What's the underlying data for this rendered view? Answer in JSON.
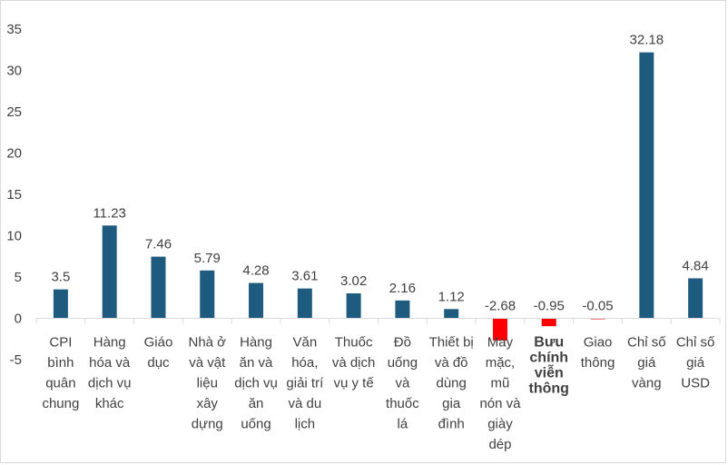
{
  "chart_data": {
    "type": "bar",
    "title": "",
    "xlabel": "",
    "ylabel": "",
    "ylim": [
      -5,
      35
    ],
    "yticks": [
      -5,
      0,
      5,
      10,
      15,
      20,
      25,
      30,
      35
    ],
    "grid": false,
    "legend": "none",
    "colors": {
      "positive": "#1f5b7e",
      "negative": "#ff0000",
      "axis": "#d9d9d9",
      "text": "#404040"
    },
    "categories": [
      [
        "CPI",
        "bình",
        "quân",
        "chung"
      ],
      [
        "Hàng",
        "hóa và",
        "dịch vụ",
        "khác"
      ],
      [
        "Giáo",
        "dục"
      ],
      [
        "Nhà ở",
        "và vật",
        "liệu",
        "xây",
        "dựng"
      ],
      [
        "Hàng",
        "ăn và",
        "dịch vụ",
        "ăn",
        "uống"
      ],
      [
        "Văn",
        "hóa,",
        "giải trí",
        "và du",
        "lịch"
      ],
      [
        "Thuốc",
        "và dịch",
        "vụ y tế"
      ],
      [
        "Đồ",
        "uống",
        "và",
        "thuốc",
        "lá"
      ],
      [
        "Thiết bị",
        "và đồ",
        "dùng",
        "gia",
        "đình"
      ],
      [
        "May",
        "mặc,",
        "mũ",
        "nón và",
        "giày",
        "dép"
      ],
      [
        "Bưu",
        "chính",
        "viễn",
        "thông"
      ],
      [
        "Giao",
        "thông"
      ],
      [
        "Chỉ số",
        "giá",
        "vàng"
      ],
      [
        "Chỉ số",
        "giá",
        "USD"
      ]
    ],
    "bold_category_index": 10,
    "values": [
      3.5,
      11.23,
      7.46,
      5.79,
      4.28,
      3.61,
      3.02,
      2.16,
      1.12,
      -2.68,
      -0.95,
      -0.05,
      32.18,
      4.84
    ],
    "value_labels": [
      "3.5",
      "11.23",
      "7.46",
      "5.79",
      "4.28",
      "3.61",
      "3.02",
      "2.16",
      "1.12",
      "-2.68",
      "-0.95",
      "-0.05",
      "32.18",
      "4.84"
    ]
  }
}
